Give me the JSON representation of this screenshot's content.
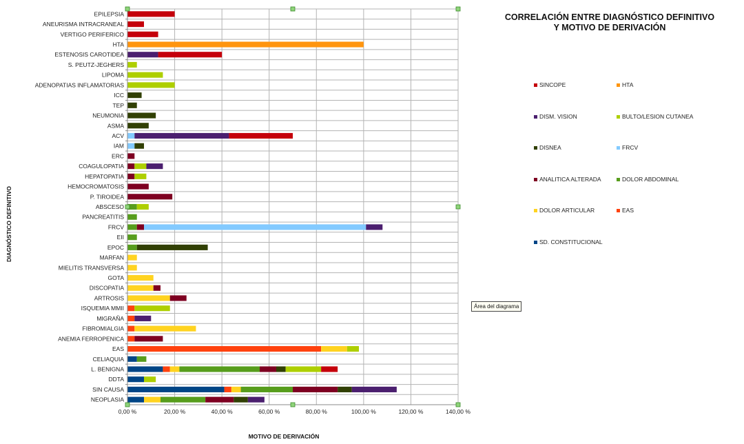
{
  "chart_data": {
    "type": "bar",
    "orientation": "horizontal",
    "stacked": true,
    "title_line1": "CORRELACIÓN ENTRE DIAGNÓSTICO DEFINITIVO",
    "title_line2": "Y MOTIVO DE DERIVACIÓN",
    "xlabel": "MOTIVO DE DERIVACIÓN",
    "ylabel": "DIAGNÓSTICO DEFINITIVO",
    "xlim": [
      0,
      140
    ],
    "xticks": [
      0,
      20,
      40,
      60,
      80,
      100,
      120,
      140
    ],
    "xtick_labels": [
      "0,00 %",
      "20,00 %",
      "40,00 %",
      "60,00 %",
      "80,00 %",
      "100,00 %",
      "120,00 %",
      "140,00 %"
    ],
    "grid": true,
    "legend_position": "right",
    "categories": [
      "EPILEPSIA",
      "ANEURISMA INTRACRANEAL",
      "VERTIGO PERIFERICO",
      "HTA",
      "ESTENOSIS CAROTIDEA",
      "S. PEUTZ-JEGHERS",
      "LIPOMA",
      "ADENOPATIAS INFLAMATORIAS",
      "ICC",
      "TEP",
      "NEUMONIA",
      "ASMA",
      "ACV",
      "IAM",
      "ERC",
      "COAGULOPATIA",
      "HEPATOPATIA",
      "HEMOCROMATOSIS",
      "P. TIROIDEA",
      "ABSCESO",
      "PANCREATITIS",
      "FRCV",
      "EII",
      "EPOC",
      "MARFAN",
      "MIELITIS TRANSVERSA",
      "GOTA",
      "DISCOPATIA",
      "ARTROSIS",
      "ISQUEMIA MMII",
      "MIGRAÑA",
      "FIBROMIALGIA",
      "ANEMIA FERROPENICA",
      "EAS",
      "CELIAQUIA",
      "L. BENIGNA",
      "DDTA",
      "SIN CAUSA",
      "NEOPLASIA"
    ],
    "series": [
      {
        "name": "SD. CONSTITUCIONAL",
        "color": "#004586",
        "values": [
          0,
          0,
          0,
          0,
          0,
          0,
          0,
          0,
          0,
          0,
          0,
          0,
          0,
          0,
          0,
          0,
          0,
          0,
          0,
          0,
          0,
          0,
          0,
          0,
          0,
          0,
          0,
          0,
          0,
          0,
          0,
          0,
          0,
          0,
          4,
          15,
          7,
          41,
          7
        ]
      },
      {
        "name": "EAS",
        "color": "#ff420e",
        "values": [
          0,
          0,
          0,
          0,
          0,
          0,
          0,
          0,
          0,
          0,
          0,
          0,
          0,
          0,
          0,
          0,
          0,
          0,
          0,
          0,
          0,
          0,
          0,
          0,
          0,
          0,
          0,
          0,
          0,
          3,
          3,
          3,
          3,
          82,
          0,
          3,
          0,
          3,
          0
        ]
      },
      {
        "name": "DOLOR ARTICULAR",
        "color": "#ffd320",
        "values": [
          0,
          0,
          0,
          0,
          0,
          0,
          0,
          0,
          0,
          0,
          0,
          0,
          0,
          0,
          0,
          0,
          0,
          0,
          0,
          0,
          0,
          0,
          0,
          0,
          4,
          4,
          11,
          11,
          18,
          0,
          0,
          26,
          0,
          11,
          0,
          4,
          0,
          4,
          7
        ]
      },
      {
        "name": "DOLOR ABDOMINAL",
        "color": "#579d1c",
        "values": [
          0,
          0,
          0,
          0,
          0,
          0,
          0,
          0,
          0,
          0,
          0,
          0,
          0,
          0,
          0,
          0,
          0,
          0,
          0,
          4,
          4,
          4,
          4,
          4,
          0,
          0,
          0,
          0,
          0,
          0,
          0,
          0,
          0,
          0,
          4,
          34,
          0,
          22,
          19
        ]
      },
      {
        "name": "ANALITICA ALTERADA",
        "color": "#7e0021",
        "values": [
          0,
          0,
          0,
          0,
          0,
          0,
          0,
          0,
          0,
          0,
          0,
          0,
          0,
          0,
          3,
          3,
          3,
          9,
          19,
          0,
          0,
          3,
          0,
          0,
          0,
          0,
          0,
          3,
          7,
          0,
          0,
          0,
          12,
          0,
          0,
          7,
          0,
          19,
          12
        ]
      },
      {
        "name": "FRCV",
        "color": "#83caff",
        "values": [
          0,
          0,
          0,
          0,
          0,
          0,
          0,
          0,
          0,
          0,
          0,
          0,
          3,
          3,
          0,
          0,
          0,
          0,
          0,
          0,
          0,
          94,
          0,
          0,
          0,
          0,
          0,
          0,
          0,
          0,
          0,
          0,
          0,
          0,
          0,
          0,
          0,
          0,
          0
        ]
      },
      {
        "name": "DISNEA",
        "color": "#314004",
        "values": [
          0,
          0,
          0,
          0,
          0,
          0,
          0,
          0,
          6,
          4,
          12,
          9,
          0,
          4,
          0,
          0,
          0,
          0,
          0,
          0,
          0,
          0,
          0,
          30,
          0,
          0,
          0,
          0,
          0,
          0,
          0,
          0,
          0,
          0,
          0,
          4,
          0,
          6,
          6
        ]
      },
      {
        "name": "BULTO/LESION CUTANEA",
        "color": "#aecf00",
        "values": [
          0,
          0,
          0,
          0,
          0,
          4,
          15,
          20,
          0,
          0,
          0,
          0,
          0,
          0,
          0,
          5,
          5,
          0,
          0,
          5,
          0,
          0,
          0,
          0,
          0,
          0,
          0,
          0,
          0,
          15,
          0,
          0,
          0,
          5,
          0,
          15,
          5,
          0,
          0
        ]
      },
      {
        "name": "DISM. VISION",
        "color": "#4b1f6f",
        "values": [
          0,
          0,
          0,
          0,
          13,
          0,
          0,
          0,
          0,
          0,
          0,
          0,
          40,
          0,
          0,
          7,
          0,
          0,
          0,
          0,
          0,
          7,
          0,
          0,
          0,
          0,
          0,
          0,
          0,
          0,
          7,
          0,
          0,
          0,
          0,
          0,
          0,
          19,
          7
        ]
      },
      {
        "name": "HTA",
        "color": "#ff950e",
        "values": [
          0,
          0,
          0,
          100,
          0,
          0,
          0,
          0,
          0,
          0,
          0,
          0,
          0,
          0,
          0,
          0,
          0,
          0,
          0,
          0,
          0,
          0,
          0,
          0,
          0,
          0,
          0,
          0,
          0,
          0,
          0,
          0,
          0,
          0,
          0,
          0,
          0,
          0,
          0
        ]
      },
      {
        "name": "SINCOPE",
        "color": "#c5000b",
        "values": [
          20,
          7,
          13,
          0,
          27,
          0,
          0,
          0,
          0,
          0,
          0,
          0,
          27,
          0,
          0,
          0,
          0,
          0,
          0,
          0,
          0,
          0,
          0,
          0,
          0,
          0,
          0,
          0,
          0,
          0,
          0,
          0,
          0,
          0,
          0,
          7,
          0,
          0,
          0
        ]
      }
    ],
    "legend_order": [
      "SINCOPE",
      "HTA",
      "DISM. VISION",
      "BULTO/LESION CUTANEA",
      "DISNEA",
      "FRCV",
      "ANALITICA ALTERADA",
      "DOLOR ABDOMINAL",
      "DOLOR ARTICULAR",
      "EAS",
      "SD. CONSTITUCIONAL"
    ]
  },
  "tooltip": "Área del diagrama"
}
